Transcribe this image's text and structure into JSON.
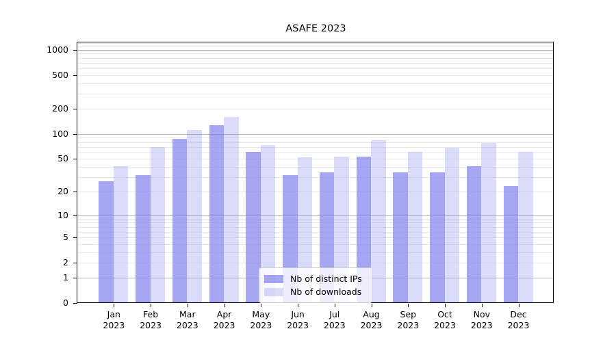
{
  "title": "ASAFE 2023",
  "chart_data": {
    "type": "bar",
    "title": "ASAFE 2023",
    "yscale": "log1p",
    "ylim": [
      0,
      1250
    ],
    "yticks": [
      0,
      1,
      2,
      5,
      10,
      20,
      50,
      100,
      200,
      500,
      1000
    ],
    "major_gridlines": [
      1,
      10,
      100,
      1000
    ],
    "minor_gridlines": [
      2,
      3,
      4,
      5,
      6,
      7,
      8,
      9,
      20,
      30,
      40,
      50,
      60,
      70,
      80,
      90,
      200,
      300,
      400,
      500,
      600,
      700,
      800,
      900,
      1100,
      1200
    ],
    "grid": true,
    "categories": [
      "Jan",
      "Feb",
      "Mar",
      "Apr",
      "May",
      "Jun",
      "Jul",
      "Aug",
      "Sep",
      "Oct",
      "Nov",
      "Dec"
    ],
    "year": "2023",
    "series": [
      {
        "name": "Nb of distinct IPs",
        "color": "#8888ee",
        "opacity": 0.75,
        "values": [
          26,
          31,
          85,
          125,
          60,
          31,
          34,
          52,
          34,
          34,
          40,
          23
        ]
      },
      {
        "name": "Nb of downloads",
        "color": "#8888ee",
        "opacity": 0.3,
        "values": [
          40,
          68,
          110,
          157,
          72,
          51,
          52,
          83,
          60,
          67,
          77,
          60
        ]
      }
    ],
    "legend_position": "lower center"
  },
  "colors": {
    "background": "#ffffff",
    "spine": "#000000",
    "major_grid": "#b0b0b0",
    "minor_grid": "#e8e8e8",
    "legend_border": "#cccccc",
    "text": "#000000"
  }
}
